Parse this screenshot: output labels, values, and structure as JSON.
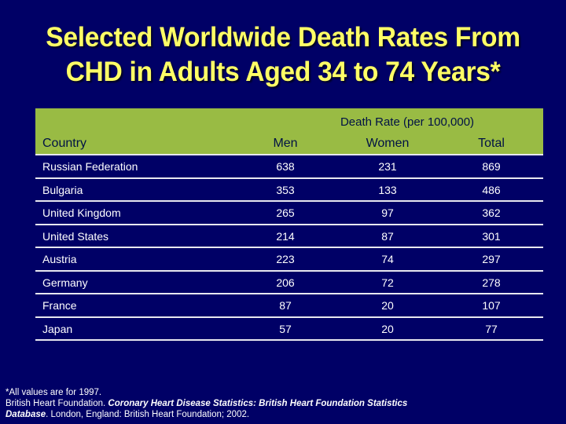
{
  "slide": {
    "title_line1": "Selected Worldwide Death Rates From",
    "title_line2": "CHD in Adults Aged 34 to 74 Years*",
    "colors": {
      "background": "#000066",
      "title": "#ffff66",
      "header_bg": "#99bb44",
      "header_text": "#001144",
      "body_text": "#ffffff"
    }
  },
  "table": {
    "group_header": "Death Rate (per 100,000)",
    "columns": [
      "Country",
      "Men",
      "Women",
      "Total"
    ],
    "rows": [
      {
        "country": "Russian Federation",
        "men": "638",
        "women": "231",
        "total": "869"
      },
      {
        "country": "Bulgaria",
        "men": "353",
        "women": "133",
        "total": "486"
      },
      {
        "country": "United Kingdom",
        "men": "265",
        "women": "97",
        "total": "362"
      },
      {
        "country": "United States",
        "men": "214",
        "women": "87",
        "total": "301"
      },
      {
        "country": "Austria",
        "men": "223",
        "women": "74",
        "total": "297"
      },
      {
        "country": "Germany",
        "men": "206",
        "women": "72",
        "total": "278"
      },
      {
        "country": "France",
        "men": "87",
        "women": "20",
        "total": "107"
      },
      {
        "country": "Japan",
        "men": "57",
        "women": "20",
        "total": "77"
      }
    ]
  },
  "footnote": {
    "line1": "*All values are for 1997.",
    "line2_a": "British Heart Foundation. ",
    "line2_b": "Coronary Heart Disease Statistics:  British Heart Foundation Statistics",
    "line3_a": "Database",
    "line3_b": ". London, England: British Heart Foundation; 2002."
  }
}
